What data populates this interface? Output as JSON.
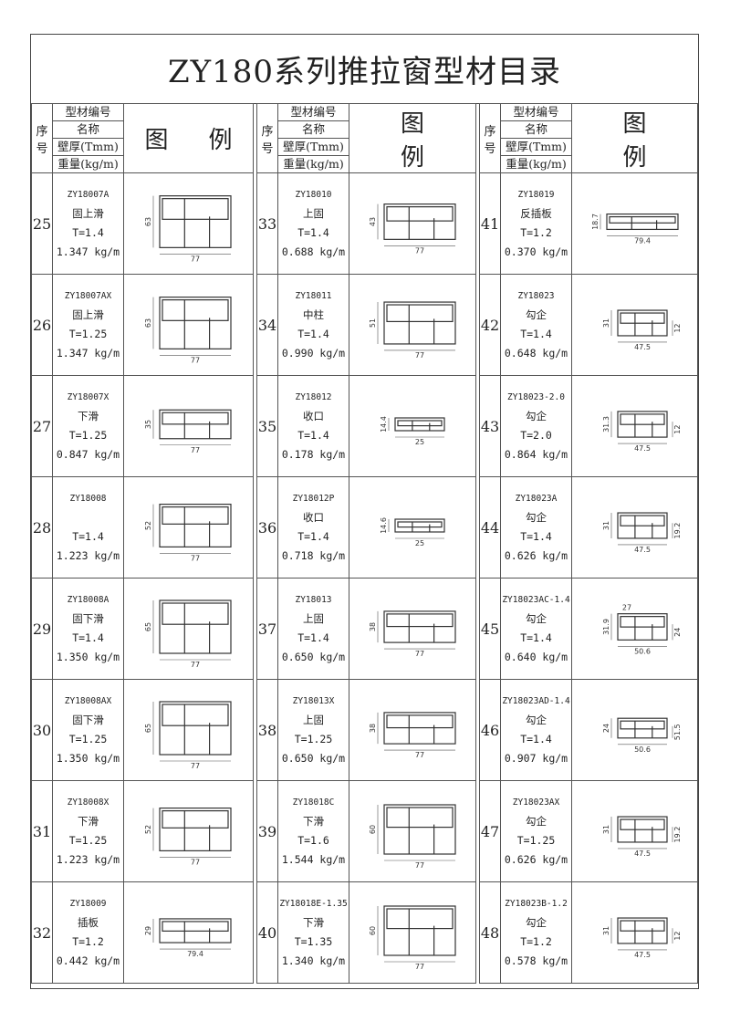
{
  "title": "ZY180系列推拉窗型材目录",
  "header": {
    "no": "序号",
    "code": "型材编号",
    "name": "名称",
    "thickness": "壁厚(Tmm)",
    "weight": "重量(kg/m)",
    "figure_1": "图",
    "figure_2": "例"
  },
  "groups": [
    {
      "items": [
        {
          "no": "25",
          "code": "ZY18007A",
          "name": "固上滑",
          "t": "T=1.4",
          "weight": "1.347 kg/m",
          "dims": {
            "w": "77",
            "h": "63"
          }
        },
        {
          "no": "26",
          "code": "ZY18007AX",
          "name": "固上滑",
          "t": "T=1.25",
          "weight": "1.347 kg/m",
          "dims": {
            "w": "77",
            "h": "63"
          }
        },
        {
          "no": "27",
          "code": "ZY18007X",
          "name": "下滑",
          "t": "T=1.25",
          "weight": "0.847 kg/m",
          "dims": {
            "w": "77",
            "h": "35"
          }
        },
        {
          "no": "28",
          "code": "ZY18008",
          "name": "",
          "t": "T=1.4",
          "weight": "1.223 kg/m",
          "dims": {
            "w": "77",
            "h": "52"
          }
        },
        {
          "no": "29",
          "code": "ZY18008A",
          "name": "固下滑",
          "t": "T=1.4",
          "weight": "1.350 kg/m",
          "dims": {
            "w": "77",
            "h": "65"
          }
        },
        {
          "no": "30",
          "code": "ZY18008AX",
          "name": "固下滑",
          "t": "T=1.25",
          "weight": "1.350 kg/m",
          "dims": {
            "w": "77",
            "h": "65"
          }
        },
        {
          "no": "31",
          "code": "ZY18008X",
          "name": "下滑",
          "t": "T=1.25",
          "weight": "1.223 kg/m",
          "dims": {
            "w": "77",
            "h": "52"
          }
        },
        {
          "no": "32",
          "code": "ZY18009",
          "name": "插板",
          "t": "T=1.2",
          "weight": "0.442 kg/m",
          "dims": {
            "w": "79.4",
            "h": "29"
          }
        }
      ]
    },
    {
      "items": [
        {
          "no": "33",
          "code": "ZY18010",
          "name": "上固",
          "t": "T=1.4",
          "weight": "0.688 kg/m",
          "dims": {
            "w": "77",
            "h": "43"
          }
        },
        {
          "no": "34",
          "code": "ZY18011",
          "name": "中柱",
          "t": "T=1.4",
          "weight": "0.990 kg/m",
          "dims": {
            "w": "77",
            "h": "51"
          }
        },
        {
          "no": "35",
          "code": "ZY18012",
          "name": "收口",
          "t": "T=1.4",
          "weight": "0.178 kg/m",
          "dims": {
            "w": "25",
            "h": "14.4"
          }
        },
        {
          "no": "36",
          "code": "ZY18012P",
          "name": "收口",
          "t": "T=1.4",
          "weight": "0.718 kg/m",
          "dims": {
            "w": "25",
            "h": "14.6"
          }
        },
        {
          "no": "37",
          "code": "ZY18013",
          "name": "上固",
          "t": "T=1.4",
          "weight": "0.650 kg/m",
          "dims": {
            "w": "77",
            "h": "38"
          }
        },
        {
          "no": "38",
          "code": "ZY18013X",
          "name": "上固",
          "t": "T=1.25",
          "weight": "0.650 kg/m",
          "dims": {
            "w": "77",
            "h": "38"
          }
        },
        {
          "no": "39",
          "code": "ZY18018C",
          "name": "下滑",
          "t": "T=1.6",
          "weight": "1.544 kg/m",
          "dims": {
            "w": "77",
            "h": "60"
          }
        },
        {
          "no": "40",
          "code": "ZY18018E-1.35",
          "name": "下滑",
          "t": "T=1.35",
          "weight": "1.340 kg/m",
          "dims": {
            "w": "77",
            "h": "60"
          }
        }
      ]
    },
    {
      "items": [
        {
          "no": "41",
          "code": "ZY18019",
          "name": "反插板",
          "t": "T=1.2",
          "weight": "0.370 kg/m",
          "dims": {
            "w": "79.4",
            "h": "18.7"
          }
        },
        {
          "no": "42",
          "code": "ZY18023",
          "name": "勾企",
          "t": "T=1.4",
          "weight": "0.648 kg/m",
          "dims": {
            "w": "47.5",
            "h": "31",
            "r": "12"
          }
        },
        {
          "no": "43",
          "code": "ZY18023-2.0",
          "name": "勾企",
          "t": "T=2.0",
          "weight": "0.864 kg/m",
          "dims": {
            "w": "47.5",
            "h": "31.3",
            "r": "12"
          }
        },
        {
          "no": "44",
          "code": "ZY18023A",
          "name": "勾企",
          "t": "T=1.4",
          "weight": "0.626 kg/m",
          "dims": {
            "w": "47.5",
            "h": "31",
            "r": "19.2"
          }
        },
        {
          "no": "45",
          "code": "ZY18023AC-1.4",
          "name": "勾企",
          "t": "T=1.4",
          "weight": "0.640 kg/m",
          "dims": {
            "w": "50.6",
            "h": "31.9",
            "r": "24",
            "top": "27"
          }
        },
        {
          "no": "46",
          "code": "ZY18023AD-1.4",
          "name": "勾企",
          "t": "T=1.4",
          "weight": "0.907 kg/m",
          "dims": {
            "w": "50.6",
            "h": "24",
            "r": "51.5"
          }
        },
        {
          "no": "47",
          "code": "ZY18023AX",
          "name": "勾企",
          "t": "T=1.25",
          "weight": "0.626 kg/m",
          "dims": {
            "w": "47.5",
            "h": "31",
            "r": "19.2"
          }
        },
        {
          "no": "48",
          "code": "ZY18023B-1.2",
          "name": "勾企",
          "t": "T=1.2",
          "weight": "0.578 kg/m",
          "dims": {
            "w": "47.5",
            "h": "31",
            "r": "12"
          }
        }
      ]
    }
  ]
}
